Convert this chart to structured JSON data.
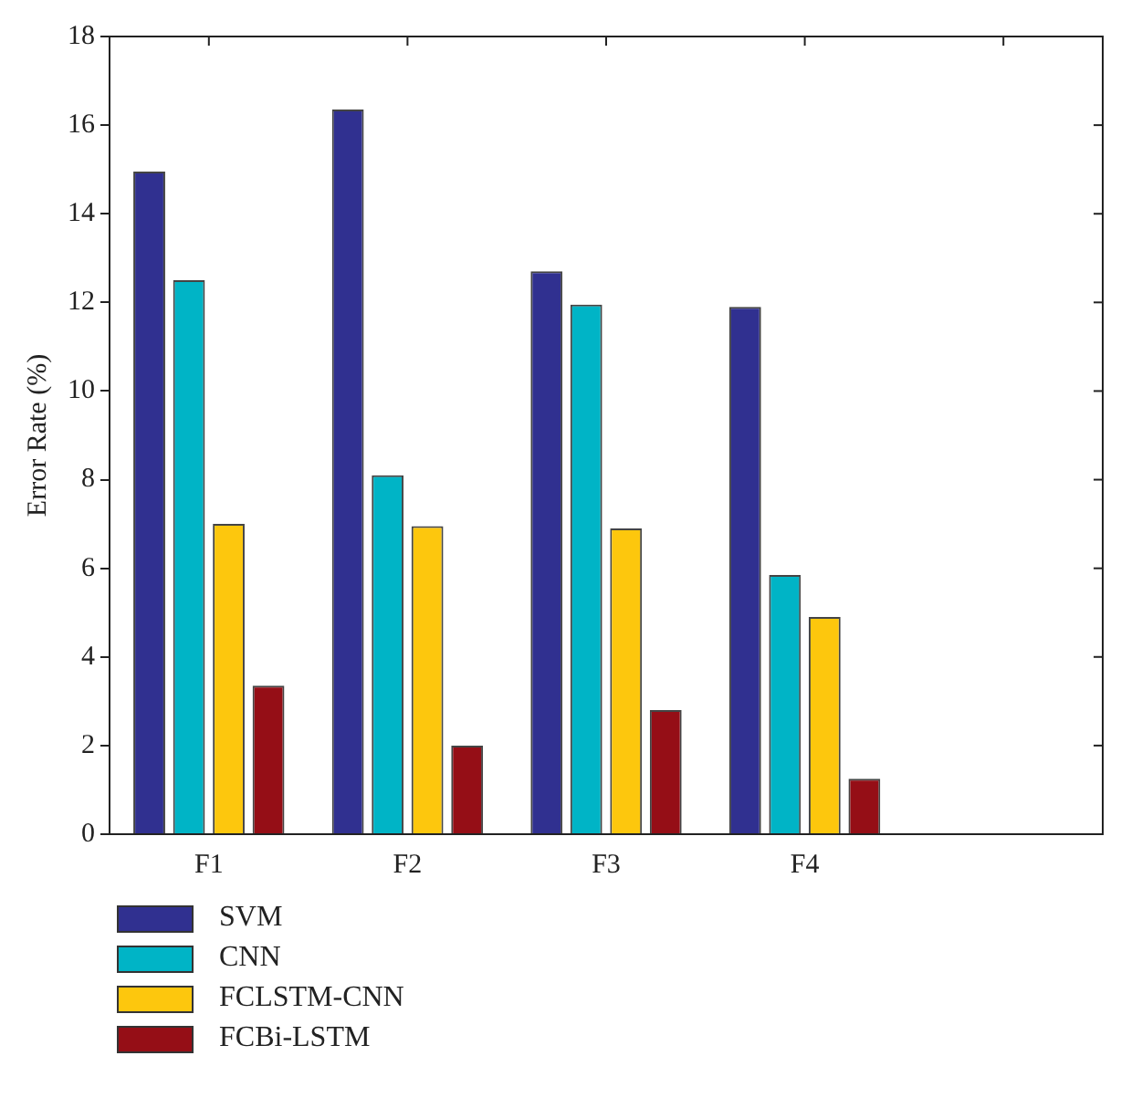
{
  "chart_data": {
    "type": "bar",
    "ylabel": "Error Rate (%)",
    "categories": [
      "F1",
      "F2",
      "F3",
      "F4",
      null
    ],
    "series": [
      {
        "name": "SVM",
        "color": "#303090",
        "values": [
          14.95,
          16.35,
          12.7,
          11.9,
          0
        ]
      },
      {
        "name": "CNN",
        "color": "#00b4c6",
        "values": [
          12.5,
          8.1,
          11.95,
          5.85,
          0
        ]
      },
      {
        "name": "FCLSTM-CNN",
        "color": "#fdc70d",
        "values": [
          7.0,
          6.95,
          6.9,
          4.9,
          0
        ]
      },
      {
        "name": "FCBi-LSTM",
        "color": "#950e16",
        "values": [
          3.35,
          2.0,
          2.8,
          1.25,
          0
        ]
      }
    ],
    "ylim": [
      0,
      18
    ],
    "yticks": [
      0,
      2,
      4,
      6,
      8,
      10,
      12,
      14,
      16,
      18
    ],
    "grid": false,
    "legend": "bottom"
  }
}
